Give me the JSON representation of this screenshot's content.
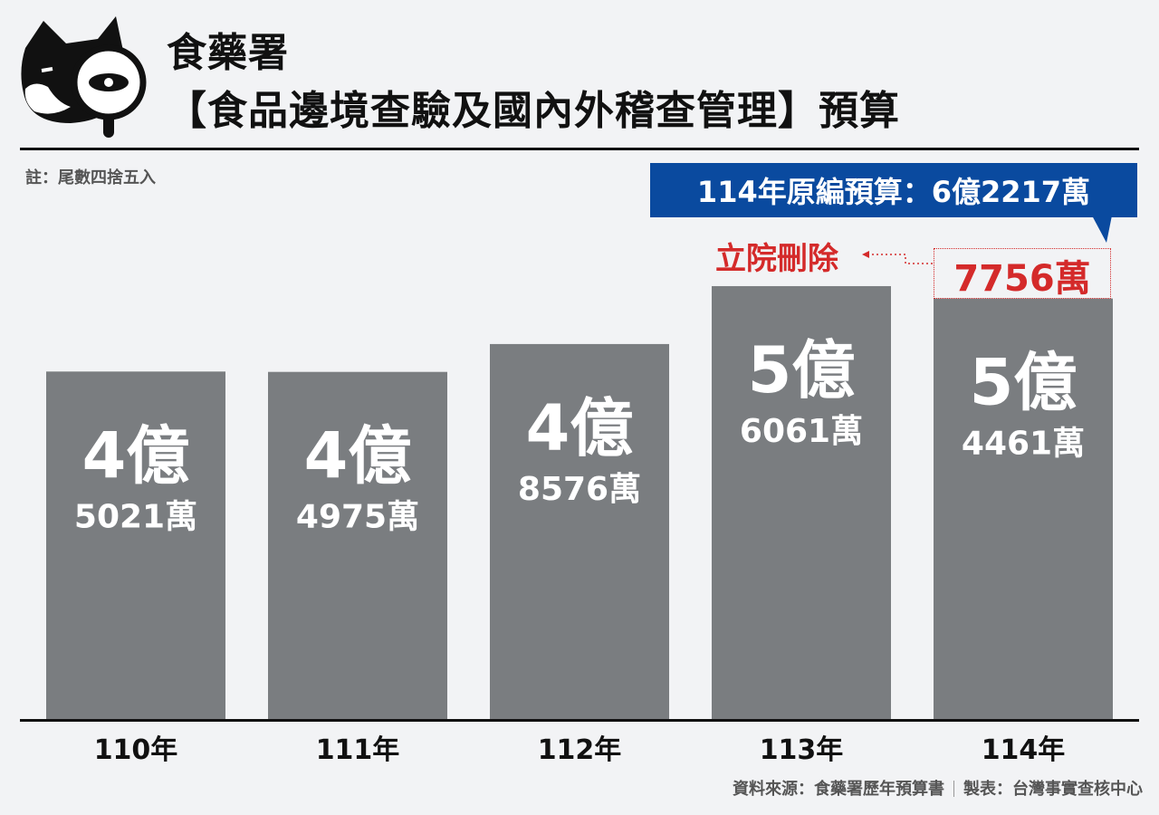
{
  "header": {
    "agency": "食藥署",
    "subtitle": "【食品邊境查驗及國內外稽查管理】預算"
  },
  "note": "註：尾數四捨五入",
  "callouts": {
    "original_budget": "114年原編預算：6億2217萬",
    "cut_label": "立院刪除",
    "cut_value": "7756萬"
  },
  "colors": {
    "bar": "#7a7d80",
    "callout_bg": "#0a4a9f",
    "cut_red": "#d42a2a"
  },
  "chart_data": {
    "type": "bar",
    "categories": [
      "110年",
      "111年",
      "112年",
      "113年",
      "114年"
    ],
    "values_wan": [
      45021,
      44975,
      48576,
      56061,
      54461
    ],
    "bar_labels": [
      {
        "big": "4億",
        "small": "5021萬"
      },
      {
        "big": "4億",
        "small": "4975萬"
      },
      {
        "big": "4億",
        "small": "8576萬"
      },
      {
        "big": "5億",
        "small": "6061萬"
      },
      {
        "big": "5億",
        "small": "4461萬"
      }
    ],
    "stacked_cut_114_wan": 7756,
    "original_114_wan": 62217,
    "title": "",
    "xlabel": "",
    "ylabel": ""
  },
  "footer": {
    "source": "資料來源：食藥署歷年預算書",
    "maker": "製表：台灣事實查核中心"
  }
}
